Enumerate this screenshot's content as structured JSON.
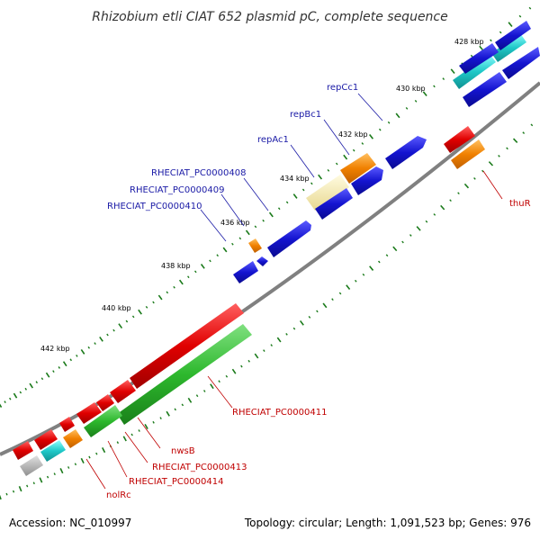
{
  "title": "Rhizobium etli CIAT 652 plasmid pC, complete sequence",
  "footer": {
    "accession": "Accession: NC_010997",
    "summary": "Topology: circular; Length: 1,091,523 bp; Genes: 976"
  },
  "ticks": [
    "428 kbp",
    "430 kbp",
    "432 kbp",
    "434 kbp",
    "436 kbp",
    "438 kbp",
    "440 kbp",
    "442 kbp"
  ],
  "labels": {
    "repCc1": "repCc1",
    "repBc1": "repBc1",
    "repAc1": "repAc1",
    "pc408": "RHECIAT_PC0000408",
    "pc409": "RHECIAT_PC0000409",
    "pc410": "RHECIAT_PC0000410",
    "thuR": "thuR",
    "pc411": "RHECIAT_PC0000411",
    "nwsB": "nwsB",
    "pc413": "RHECIAT_PC0000413",
    "pc414": "RHECIAT_PC0000414",
    "nolRc": "nolRc"
  },
  "colors": {
    "blue": "#1414d0",
    "red": "#e00000",
    "green": "#2db82d",
    "orange": "#f08000",
    "cyan": "#1ec8c8",
    "yellow": "#f0e0a0",
    "grey": "#b0b0b0",
    "backbone": "#808080",
    "dot": "#1a7a1a"
  }
}
